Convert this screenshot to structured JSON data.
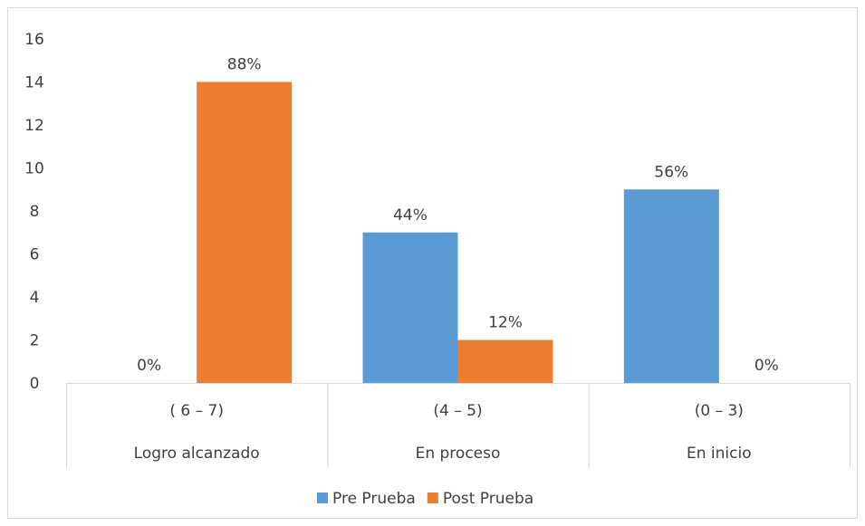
{
  "chart_data": {
    "type": "bar",
    "categories": [
      {
        "range": "( 6 – 7)",
        "name": "Logro alcanzado"
      },
      {
        "range": "(4 – 5)",
        "name": "En proceso"
      },
      {
        "range": "(0 – 3)",
        "name": "En inicio"
      }
    ],
    "series": [
      {
        "name": "Pre Prueba",
        "color": "#5b9bd5",
        "values": [
          0,
          7,
          9
        ],
        "labels": [
          "0%",
          "44%",
          "56%"
        ]
      },
      {
        "name": "Post Prueba",
        "color": "#ed7d31",
        "values": [
          14,
          2,
          0
        ],
        "labels": [
          "88%",
          "12%",
          "0%"
        ]
      }
    ],
    "ylim": [
      0,
      16
    ],
    "yticks": [
      0,
      2,
      4,
      6,
      8,
      10,
      12,
      14,
      16
    ],
    "grid": false,
    "legend": "bottom-center"
  }
}
